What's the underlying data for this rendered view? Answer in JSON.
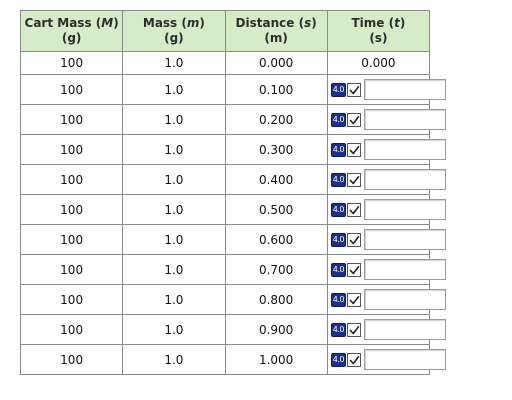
{
  "headers": [
    {
      "name": "Cart Mass (",
      "symbol": "M",
      "close": ")",
      "unit": "(g)"
    },
    {
      "name": "Mass (",
      "symbol": "m",
      "close": ")",
      "unit": "(g)"
    },
    {
      "name": "Distance (",
      "symbol": "s",
      "close": ")",
      "unit": "(m)"
    },
    {
      "name": "Time (",
      "symbol": "t",
      "close": ")",
      "unit": "(s)"
    }
  ],
  "rows": [
    {
      "cart_mass": "100",
      "mass": "1.0",
      "distance": "0.000",
      "time": "0.000",
      "editable": false
    },
    {
      "cart_mass": "100",
      "mass": "1.0",
      "distance": "0.100",
      "time": "",
      "editable": true
    },
    {
      "cart_mass": "100",
      "mass": "1.0",
      "distance": "0.200",
      "time": "",
      "editable": true
    },
    {
      "cart_mass": "100",
      "mass": "1.0",
      "distance": "0.300",
      "time": "",
      "editable": true
    },
    {
      "cart_mass": "100",
      "mass": "1.0",
      "distance": "0.400",
      "time": "",
      "editable": true
    },
    {
      "cart_mass": "100",
      "mass": "1.0",
      "distance": "0.500",
      "time": "",
      "editable": true
    },
    {
      "cart_mass": "100",
      "mass": "1.0",
      "distance": "0.600",
      "time": "",
      "editable": true
    },
    {
      "cart_mass": "100",
      "mass": "1.0",
      "distance": "0.700",
      "time": "",
      "editable": true
    },
    {
      "cart_mass": "100",
      "mass": "1.0",
      "distance": "0.800",
      "time": "",
      "editable": true
    },
    {
      "cart_mass": "100",
      "mass": "1.0",
      "distance": "0.900",
      "time": "",
      "editable": true
    },
    {
      "cart_mass": "100",
      "mass": "1.0",
      "distance": "1.000",
      "time": "",
      "editable": true
    }
  ],
  "badge": {
    "label": "4.0",
    "icon": "check-icon"
  },
  "colors": {
    "header_bg": "#d6ecc8",
    "border": "#8a8a8a",
    "badge_bg": "#1b2f8f"
  }
}
